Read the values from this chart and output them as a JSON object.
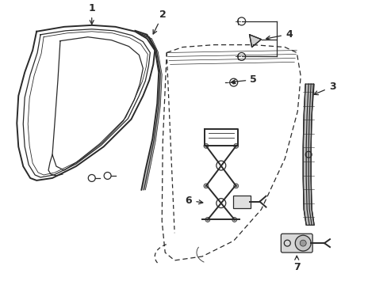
{
  "bg_color": "#ffffff",
  "line_color": "#2a2a2a",
  "figsize": [
    4.89,
    3.6
  ],
  "dpi": 100,
  "glass_outer": {
    "x": [
      0.02,
      0.04,
      0.065,
      0.09,
      0.175,
      0.235,
      0.245,
      0.24,
      0.235,
      0.175,
      0.155,
      0.09,
      0.065,
      0.04,
      0.02
    ],
    "y": [
      0.68,
      0.82,
      0.875,
      0.905,
      0.905,
      0.87,
      0.83,
      0.76,
      0.72,
      0.65,
      0.63,
      0.61,
      0.595,
      0.59,
      0.68
    ]
  }
}
